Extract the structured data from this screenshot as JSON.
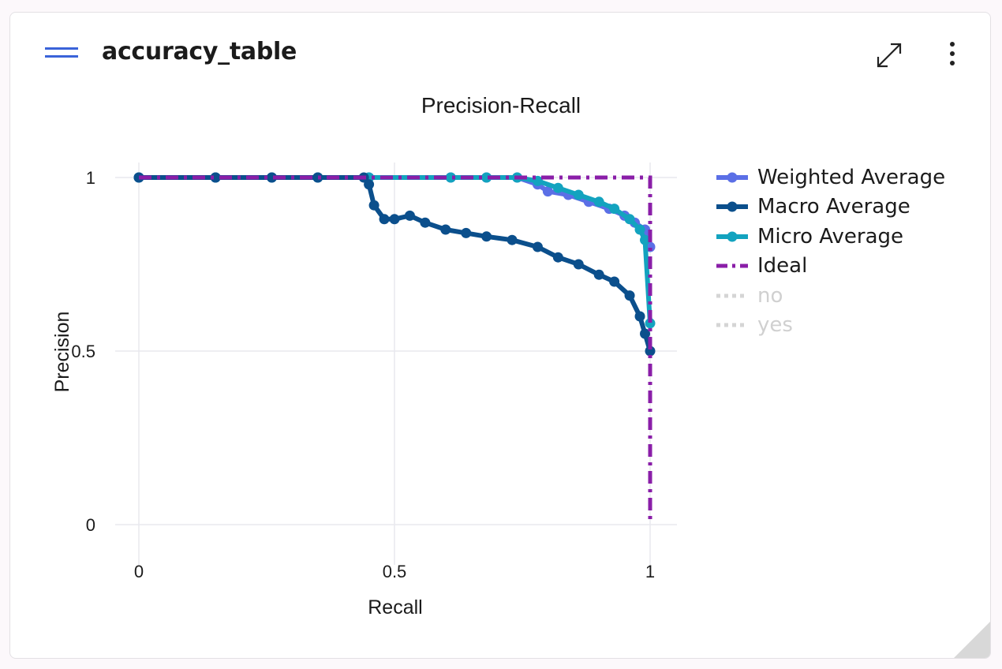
{
  "card": {
    "title": "accuracy_table",
    "drag_icon": "drag-lines-icon",
    "expand_icon": "expand-diagonal-icon",
    "more_icon": "more-vertical-icon"
  },
  "chart_data": {
    "type": "line",
    "title": "Precision-Recall",
    "xlabel": "Recall",
    "ylabel": "Precision",
    "xlim": [
      0,
      1
    ],
    "ylim": [
      0,
      1
    ],
    "x_ticks": [
      0,
      0.5,
      1
    ],
    "x_tick_labels": [
      "0",
      "0.5",
      "1"
    ],
    "y_ticks": [
      0,
      0.5,
      1
    ],
    "y_tick_labels": [
      "0",
      "0.5",
      "1"
    ],
    "grid": true,
    "legend_position": "right",
    "series": [
      {
        "name": "Weighted Average",
        "color": "#5b6fe6",
        "style": "solid-markers",
        "visible": true,
        "x": [
          0,
          0.15,
          0.26,
          0.35,
          0.45,
          0.61,
          0.68,
          0.74,
          0.78,
          0.8,
          0.84,
          0.88,
          0.92,
          0.95,
          0.97,
          0.99,
          1
        ],
        "y": [
          1,
          1,
          1,
          1,
          1,
          1,
          1,
          1,
          0.98,
          0.96,
          0.95,
          0.93,
          0.91,
          0.89,
          0.87,
          0.85,
          0.8
        ]
      },
      {
        "name": "Macro Average",
        "color": "#0b4f8c",
        "style": "solid-markers",
        "visible": true,
        "x": [
          0,
          0.15,
          0.26,
          0.35,
          0.44,
          0.45,
          0.46,
          0.48,
          0.5,
          0.53,
          0.56,
          0.6,
          0.64,
          0.68,
          0.73,
          0.78,
          0.82,
          0.86,
          0.9,
          0.93,
          0.96,
          0.98,
          0.99,
          1
        ],
        "y": [
          1,
          1,
          1,
          1,
          1,
          0.98,
          0.92,
          0.88,
          0.88,
          0.89,
          0.87,
          0.85,
          0.84,
          0.83,
          0.82,
          0.8,
          0.77,
          0.75,
          0.72,
          0.7,
          0.66,
          0.6,
          0.55,
          0.5
        ]
      },
      {
        "name": "Micro Average",
        "color": "#13a3bf",
        "style": "solid-markers",
        "visible": true,
        "x": [
          0,
          0.15,
          0.26,
          0.35,
          0.45,
          0.61,
          0.68,
          0.74,
          0.78,
          0.82,
          0.86,
          0.9,
          0.93,
          0.96,
          0.98,
          0.99,
          1
        ],
        "y": [
          1,
          1,
          1,
          1,
          1,
          1,
          1,
          1,
          0.99,
          0.97,
          0.95,
          0.93,
          0.91,
          0.88,
          0.85,
          0.82,
          0.58
        ]
      },
      {
        "name": "Ideal",
        "color": "#8a1ea8",
        "style": "dashdot",
        "visible": true,
        "x": [
          0,
          1,
          1
        ],
        "y": [
          1,
          1,
          0
        ]
      },
      {
        "name": "no",
        "color": "#d5d5d5",
        "style": "dotted",
        "visible": false,
        "x": [],
        "y": []
      },
      {
        "name": "yes",
        "color": "#d5d5d5",
        "style": "dotted",
        "visible": false,
        "x": [],
        "y": []
      }
    ]
  }
}
